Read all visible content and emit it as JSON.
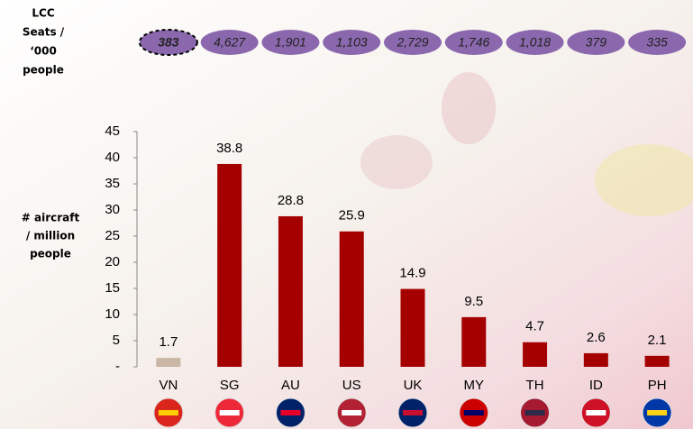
{
  "chart_data": {
    "type": "bar",
    "y_label_lines": [
      "# aircraft",
      "/ million",
      "people"
    ],
    "categories": [
      "VN",
      "SG",
      "AU",
      "US",
      "UK",
      "MY",
      "TH",
      "ID",
      "PH"
    ],
    "values": [
      1.7,
      38.8,
      28.8,
      25.9,
      14.9,
      9.5,
      4.7,
      2.6,
      2.1
    ],
    "colors": [
      "#c9b6a4",
      "#a50000",
      "#a50000",
      "#a50000",
      "#a50000",
      "#a50000",
      "#a50000",
      "#a50000",
      "#a50000"
    ],
    "ylim": [
      0,
      45
    ],
    "yticks": [
      {
        "value": 0,
        "label": "-"
      },
      5,
      10,
      15,
      20,
      25,
      30,
      35,
      40,
      45
    ],
    "lcc_seats": {
      "label_lines": [
        "LCC",
        "Seats /",
        "‘000",
        "people"
      ],
      "values": [
        383,
        4627,
        1901,
        1103,
        2729,
        1746,
        1018,
        379,
        335
      ],
      "value_labels": [
        "383",
        "4,627",
        "1,901",
        "1,103",
        "2,729",
        "1,746",
        "1,018",
        "379",
        "335"
      ],
      "color": "#8b68ae",
      "highlight": 0
    }
  }
}
